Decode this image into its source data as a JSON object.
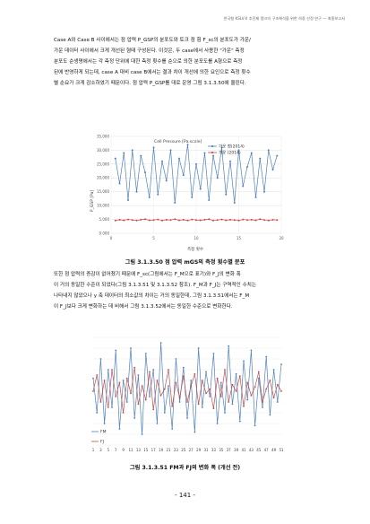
{
  "header": "한국형 KSLV-II 추진제 탱크의 구조해석을 위한 하중 산정 연구 — 최종보고서",
  "paragraph1": [
    "Case A와 Case B 사이에서는 점 압력 P_GSP의 분포도와 토크 점 힘 F_sc의 분포도가 가운/",
    "가운 데이터 사이에서 크게 개선된 형태 구성된다. 이것은, 두 case에서 사용한 \"가운\" 측정",
    "분포도 순생명에서는 각 측정 단위에 대한 측정 횟수를 순으로 의한 분포도를 A형으로 측정",
    "된에 반영하게 되는데, case A 대비 case B에서는 결과 차이 개선에 의한 요인으로 측정 횟수",
    "별 순요가 크게 감소하였기 때문이다. 점 압력 P_GSP를 대로 운영 그림 3.1.3.50에 올린다."
  ],
  "paragraph2": [
    "또한 점 압력의 증감이 없어졌기 때문에 F_sc(그림에서는 F_M으로 표기)와 F_J의 변화 폭",
    "이 거의 동일한 수준이 되었다(그림 3.1.3.51 및 3.1.3.52 참조). F_M과 F_J는 구역적인 수치는",
    "나타내지 않았으나 y 축 데이터의 최소값의 차이는 거의 동일한데, 그림 3.1.3.51에서는 F_M",
    "이 F_J보다 크게 변화하는 데 비해서 그림 3.1.3.52에서는 동일한 수준으로 변화한다."
  ],
  "figure1": {
    "caption": "그림 3.1.3.50 점 압력 mGS의 측정 횟수별 분포",
    "title": "Cell Pressure [Pa.scale]",
    "ylabel": "P_GSP [Pa]",
    "xlabel": "측정 횟수",
    "legend": [
      "가운 정(2014)",
      "가운 (2014)"
    ]
  },
  "figure2": {
    "caption": "그림 3.1.3.51 FM과 FJ의 변화 폭 (개선 전)",
    "legend": [
      "FM",
      "FJ"
    ]
  },
  "page_number": "- 141 -",
  "chart_data": [
    {
      "type": "line",
      "title": "Cell Pressure [Pa.scale]",
      "xlabel": "측정 횟수",
      "ylabel": "P_GSP [Pa]",
      "xlim": [
        0,
        20
      ],
      "ylim": [
        0,
        35000
      ],
      "xticks": [
        0,
        5,
        10,
        15,
        20
      ],
      "yticks": [
        0,
        5000,
        10000,
        15000,
        20000,
        25000,
        30000,
        35000
      ],
      "ytick_labels": [
        "0.000",
        "5,000",
        "10,000",
        "15,000",
        "20,000",
        "25,000",
        "30,000",
        "35,000"
      ],
      "grid": true,
      "legend_position": "top-right",
      "series": [
        {
          "name": "가운 정(2014)",
          "color": "#4f81bd",
          "x": [
            0.5,
            1,
            1.5,
            2,
            2.5,
            3,
            3.5,
            4,
            4.5,
            5,
            5.5,
            6,
            6.5,
            7,
            7.5,
            8,
            8.5,
            9,
            9.5,
            10,
            10.5,
            11,
            11.5,
            12,
            12.5,
            13,
            13.5,
            14,
            14.5,
            15,
            15.5,
            16,
            16.5,
            17,
            17.5,
            18,
            18.5,
            19,
            19.5
          ],
          "y": [
            27000,
            18000,
            29000,
            12000,
            30000,
            15000,
            28000,
            22000,
            13000,
            31000,
            14000,
            26000,
            19000,
            30000,
            11000,
            27000,
            21000,
            32000,
            13000,
            25000,
            16000,
            29000,
            12000,
            28000,
            20000,
            31000,
            14000,
            26000,
            11000,
            30000,
            17000,
            24000,
            29000,
            13000,
            27000,
            15000,
            30000,
            23000,
            28000
          ]
        },
        {
          "name": "가운 (2014)",
          "color": "#c0504d",
          "x": [
            0.5,
            1,
            1.5,
            2,
            2.5,
            3,
            3.5,
            4,
            4.5,
            5,
            5.5,
            6,
            6.5,
            7,
            7.5,
            8,
            8.5,
            9,
            9.5,
            10,
            10.5,
            11,
            11.5,
            12,
            12.5,
            13,
            13.5,
            14,
            14.5,
            15,
            15.5,
            16,
            16.5,
            17,
            17.5,
            18,
            18.5,
            19,
            19.5
          ],
          "y": [
            4600,
            4900,
            4700,
            5000,
            4800,
            4600,
            4900,
            5100,
            4700,
            4800,
            5000,
            4600,
            4900,
            4800,
            5100,
            4700,
            4900,
            4600,
            5000,
            4800,
            4700,
            4900,
            5100,
            4600,
            4800,
            5000,
            4700,
            4900,
            4800,
            4600,
            5000,
            4800,
            4900,
            4700,
            5100,
            4800,
            4600,
            4900,
            4800
          ]
        }
      ]
    },
    {
      "type": "line",
      "xlim": [
        1,
        51
      ],
      "ylim": [
        0,
        100
      ],
      "categories": [
        "1",
        "3",
        "5",
        "7",
        "9",
        "11",
        "13",
        "15",
        "17",
        "19",
        "21",
        "23",
        "25",
        "27",
        "29",
        "31",
        "33",
        "35",
        "37",
        "39",
        "41",
        "43",
        "45",
        "47",
        "49",
        "51"
      ],
      "grid": true,
      "legend_position": "bottom-left",
      "series": [
        {
          "name": "FM",
          "color": "#4f81bd",
          "x": [
            1,
            2,
            3,
            4,
            5,
            6,
            7,
            8,
            9,
            10,
            11,
            12,
            13,
            14,
            15,
            16,
            17,
            18,
            19,
            20,
            21,
            22,
            23,
            24,
            25,
            26,
            27,
            28,
            29,
            30,
            31,
            32,
            33,
            34,
            35,
            36,
            37,
            38,
            39,
            40,
            41,
            42,
            43,
            44,
            45,
            46,
            47,
            48,
            49,
            50,
            51
          ],
          "y": [
            62,
            30,
            80,
            20,
            70,
            35,
            88,
            15,
            60,
            40,
            90,
            25,
            65,
            10,
            85,
            45,
            70,
            20,
            95,
            30,
            55,
            15,
            80,
            40,
            72,
            25,
            60,
            12,
            90,
            35,
            68,
            45,
            85,
            20,
            58,
            30,
            92,
            38,
            66,
            22,
            78,
            42,
            88,
            18,
            62,
            35,
            82,
            28,
            70,
            40,
            75
          ]
        },
        {
          "name": "FJ",
          "color": "#c0504d",
          "x": [
            1,
            2,
            3,
            4,
            5,
            6,
            7,
            8,
            9,
            10,
            11,
            12,
            13,
            14,
            15,
            16,
            17,
            18,
            19,
            20,
            21,
            22,
            23,
            24,
            25,
            26,
            27,
            28,
            29,
            30,
            31,
            32,
            33,
            34,
            35,
            36,
            37,
            38,
            39,
            40,
            41,
            42,
            43,
            44,
            45,
            46,
            47,
            48,
            49,
            50,
            51
          ],
          "y": [
            50,
            65,
            40,
            60,
            35,
            70,
            45,
            58,
            30,
            62,
            48,
            72,
            38,
            55,
            42,
            68,
            33,
            60,
            46,
            52,
            70,
            36,
            58,
            44,
            64,
            40,
            55,
            66,
            38,
            60,
            48,
            52,
            34,
            62,
            45,
            70,
            40,
            56,
            50,
            64,
            36,
            58,
            46,
            54,
            68,
            40,
            52,
            60,
            44,
            56,
            50
          ]
        }
      ]
    }
  ]
}
